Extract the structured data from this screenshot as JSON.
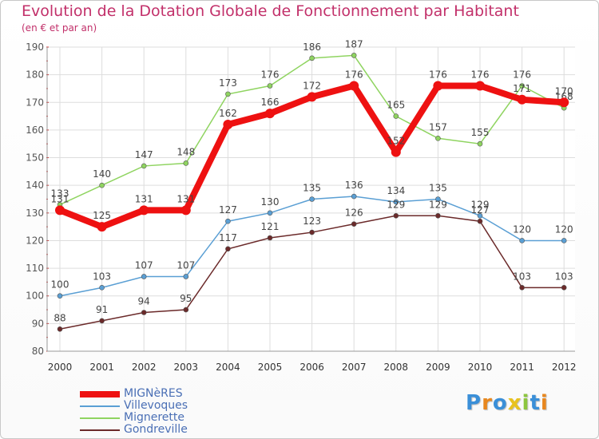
{
  "chart_data": {
    "type": "line",
    "title": "Evolution de la Dotation Globale de Fonctionnement par Habitant",
    "subtitle": "(en € et par an)",
    "xlabel": "",
    "ylabel": "",
    "x": [
      "2000",
      "2001",
      "2002",
      "2003",
      "2004",
      "2005",
      "2006",
      "2007",
      "2008",
      "2009",
      "2010",
      "2011",
      "2012"
    ],
    "ylim": [
      80,
      190
    ],
    "yticks": [
      80,
      90,
      100,
      110,
      120,
      130,
      140,
      150,
      160,
      170,
      180,
      190
    ],
    "grid": true,
    "legend_position": "bottom-left",
    "series": [
      {
        "name": "MIGNèRES",
        "color": "#ee1111",
        "emphasis": true,
        "values": [
          131,
          125,
          131,
          131,
          162,
          166,
          172,
          176,
          152,
          176,
          176,
          171,
          170
        ]
      },
      {
        "name": "Villevoques",
        "color": "#5a9fd4",
        "emphasis": false,
        "values": [
          100,
          103,
          107,
          107,
          127,
          130,
          135,
          136,
          134,
          135,
          129,
          120,
          120
        ]
      },
      {
        "name": "Mignerette",
        "color": "#8fd460",
        "emphasis": false,
        "values": [
          133,
          140,
          147,
          148,
          173,
          176,
          186,
          187,
          165,
          157,
          155,
          176,
          168
        ]
      },
      {
        "name": "Gondreville",
        "color": "#6b2a2a",
        "emphasis": false,
        "values": [
          88,
          91,
          94,
          95,
          117,
          121,
          123,
          126,
          129,
          129,
          127,
          103,
          103
        ]
      }
    ]
  },
  "logo": {
    "letters": [
      "P",
      "r",
      "o",
      "x",
      "i",
      "t",
      "i"
    ],
    "colors": [
      "#3a8fd8",
      "#e8871e",
      "#3a8fd8",
      "#e8c21e",
      "#8dc63f",
      "#3a8fd8",
      "#e8871e"
    ]
  }
}
